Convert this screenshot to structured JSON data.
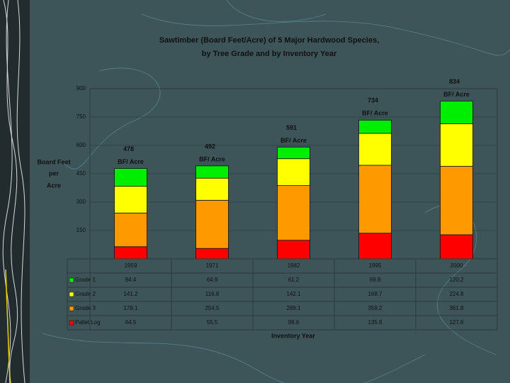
{
  "chart_data": {
    "type": "stacked-bar",
    "title": "Sawtimber (Board Feet/Acre) of 5 Major Hardwood Species,",
    "subtitle": "by Tree Grade and by Inventory Year",
    "y_label": [
      "Board Feet",
      "per",
      "Acre"
    ],
    "x_label": "Inventory Year",
    "categories": [
      "1959",
      "1971",
      "1982",
      "1995",
      "2000"
    ],
    "series": [
      {
        "name": "Pallet Log",
        "color": "#ff0000",
        "values": [
          64.5,
          55.5,
          98.6,
          135.8,
          127.6
        ]
      },
      {
        "name": "Grade 3",
        "color": "#ff9900",
        "values": [
          178.1,
          254.5,
          289.1,
          359.2,
          361.8
        ]
      },
      {
        "name": "Grade 2",
        "color": "#ffff00",
        "values": [
          141.2,
          116.8,
          142.1,
          168.7,
          224.8
        ]
      },
      {
        "name": "Grade 1",
        "color": "#00ee00",
        "values": [
          94.4,
          64.9,
          61.2,
          69.9,
          120.2
        ]
      }
    ],
    "totals": [
      478,
      492,
      591,
      734,
      834
    ],
    "total_unit": "BF/ Acre",
    "ylim": [
      0,
      900
    ],
    "yticks": [
      {
        "value": 0,
        "label": "-"
      },
      150,
      300,
      450,
      600,
      750,
      900
    ],
    "grid": true
  }
}
